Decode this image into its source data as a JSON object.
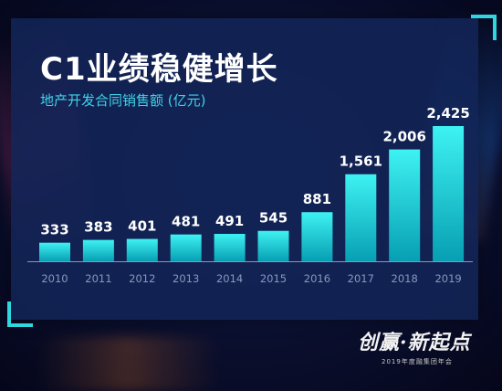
{
  "title": "C1业绩稳健增长",
  "subtitle": "地产开发合同销售额 (亿元)",
  "colors": {
    "bar_top": "#3ef2f2",
    "bar_bottom": "#079fb3",
    "axis": "#8a97bd",
    "label": "#ffffff",
    "accent": "#2fd6e0"
  },
  "chart_data": {
    "type": "bar",
    "title": "C1业绩稳健增长",
    "subtitle": "地产开发合同销售额 (亿元)",
    "categories": [
      "2010",
      "2011",
      "2012",
      "2013",
      "2014",
      "2015",
      "2016",
      "2017",
      "2018",
      "2019"
    ],
    "values": [
      333,
      383,
      401,
      481,
      491,
      545,
      881,
      1561,
      2006,
      2425
    ],
    "data_labels": [
      "333",
      "383",
      "401",
      "481",
      "491",
      "545",
      "881",
      "1,561",
      "2,006",
      "2,425"
    ],
    "ylim": [
      0,
      2425
    ],
    "grid": false,
    "legend": "none"
  },
  "footer": {
    "logo_text": "创赢·新起点",
    "caption": "2019年度融集团年会"
  }
}
